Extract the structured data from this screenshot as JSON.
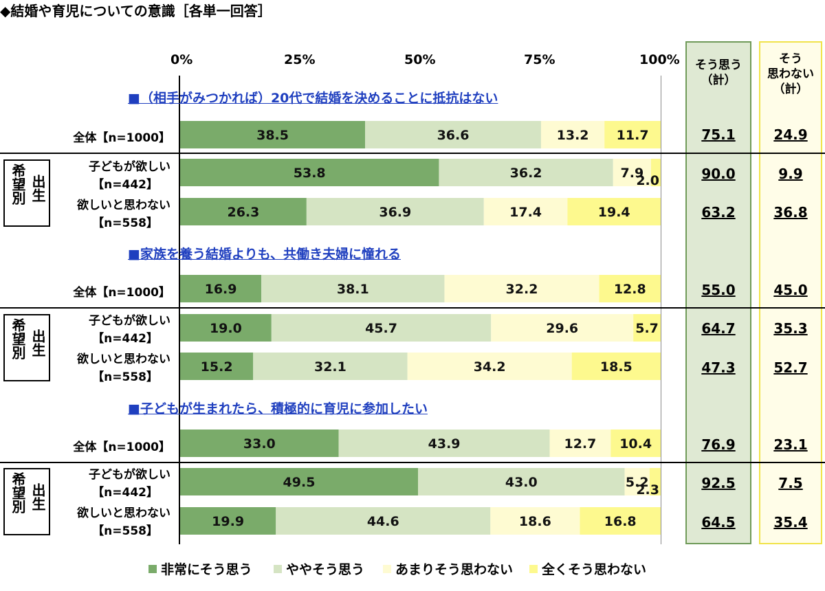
{
  "title": "◆結婚や育児についての意識［各単一回答］",
  "axis_ticks": [
    "0%",
    "25%",
    "50%",
    "75%",
    "100%"
  ],
  "columns": {
    "agree": [
      "そう思う",
      "（計）"
    ],
    "disagree": [
      "そう",
      "思わない",
      "（計）"
    ]
  },
  "group_label": {
    "left": "希望別",
    "right": "出生"
  },
  "colors": {
    "s1": "#7aab6a",
    "s2": "#d5e4c3",
    "s3": "#fefbd2",
    "s4": "#fdf98e",
    "agree_col_bg": "#dfe9d3",
    "agree_col_border": "#6f9a58",
    "disagree_col_bg": "#fffde8",
    "disagree_col_border": "#f0e34a",
    "question_text": "#1f3fbf"
  },
  "legend": [
    "非常にそう思う",
    "ややそう思う",
    "あまりそう思わない",
    "全くそう思わない"
  ],
  "questions": [
    {
      "title": "■（相手がみつかれば）20代で結婚を決めることに抵抗はない",
      "rows": [
        {
          "label_lines": [
            "全体【n=1000】"
          ],
          "values": [
            "38.5",
            "36.6",
            "13.2",
            "11.7"
          ],
          "agree": "75.1",
          "disagree": "24.9"
        },
        {
          "label_lines": [
            "子どもが欲しい",
            "【n=442】"
          ],
          "values": [
            "53.8",
            "36.2",
            "7.9",
            "2.0"
          ],
          "agree": "90.0",
          "disagree": "9.9"
        },
        {
          "label_lines": [
            "欲しいと思わない",
            "【n=558】"
          ],
          "values": [
            "26.3",
            "36.9",
            "17.4",
            "19.4"
          ],
          "agree": "63.2",
          "disagree": "36.8"
        }
      ]
    },
    {
      "title": "■家族を養う結婚よりも、共働き夫婦に憧れる",
      "rows": [
        {
          "label_lines": [
            "全体【n=1000】"
          ],
          "values": [
            "16.9",
            "38.1",
            "32.2",
            "12.8"
          ],
          "agree": "55.0",
          "disagree": "45.0"
        },
        {
          "label_lines": [
            "子どもが欲しい",
            "【n=442】"
          ],
          "values": [
            "19.0",
            "45.7",
            "29.6",
            "5.7"
          ],
          "agree": "64.7",
          "disagree": "35.3"
        },
        {
          "label_lines": [
            "欲しいと思わない",
            "【n=558】"
          ],
          "values": [
            "15.2",
            "32.1",
            "34.2",
            "18.5"
          ],
          "agree": "47.3",
          "disagree": "52.7"
        }
      ]
    },
    {
      "title": "■子どもが生まれたら、積極的に育児に参加したい",
      "rows": [
        {
          "label_lines": [
            "全体【n=1000】"
          ],
          "values": [
            "33.0",
            "43.9",
            "12.7",
            "10.4"
          ],
          "agree": "76.9",
          "disagree": "23.1"
        },
        {
          "label_lines": [
            "子どもが欲しい",
            "【n=442】"
          ],
          "values": [
            "49.5",
            "43.0",
            "5.2",
            "2.3"
          ],
          "agree": "92.5",
          "disagree": "7.5"
        },
        {
          "label_lines": [
            "欲しいと思わない",
            "【n=558】"
          ],
          "values": [
            "19.9",
            "44.6",
            "18.6",
            "16.8"
          ],
          "agree": "64.5",
          "disagree": "35.4"
        }
      ]
    }
  ],
  "chart_data": {
    "type": "bar",
    "stacked": true,
    "orientation": "horizontal",
    "title": "◆結婚や育児についての意識［各単一回答］",
    "xlim": [
      0,
      100
    ],
    "x_ticks": [
      "0%",
      "25%",
      "50%",
      "75%",
      "100%"
    ],
    "series_names": [
      "非常にそう思う",
      "ややそう思う",
      "あまりそう思わない",
      "全くそう思わない"
    ],
    "groups": [
      {
        "question": "■（相手がみつかれば）20代で結婚を決めることに抵抗はない",
        "categories": [
          "全体【n=1000】",
          "子どもが欲しい【n=442】",
          "欲しいと思わない【n=558】"
        ],
        "series": [
          {
            "name": "非常にそう思う",
            "values": [
              38.5,
              53.8,
              26.3
            ]
          },
          {
            "name": "ややそう思う",
            "values": [
              36.6,
              36.2,
              36.9
            ]
          },
          {
            "name": "あまりそう思わない",
            "values": [
              13.2,
              7.9,
              17.4
            ]
          },
          {
            "name": "全くそう思わない",
            "values": [
              11.7,
              2.0,
              19.4
            ]
          }
        ],
        "agree_total": [
          75.1,
          90.0,
          63.2
        ],
        "disagree_total": [
          24.9,
          9.9,
          36.8
        ]
      },
      {
        "question": "■家族を養う結婚よりも、共働き夫婦に憧れる",
        "categories": [
          "全体【n=1000】",
          "子どもが欲しい【n=442】",
          "欲しいと思わない【n=558】"
        ],
        "series": [
          {
            "name": "非常にそう思う",
            "values": [
              16.9,
              19.0,
              15.2
            ]
          },
          {
            "name": "ややそう思う",
            "values": [
              38.1,
              45.7,
              32.1
            ]
          },
          {
            "name": "あまりそう思わない",
            "values": [
              32.2,
              29.6,
              34.2
            ]
          },
          {
            "name": "全くそう思わない",
            "values": [
              12.8,
              5.7,
              18.5
            ]
          }
        ],
        "agree_total": [
          55.0,
          64.7,
          47.3
        ],
        "disagree_total": [
          45.0,
          35.3,
          52.7
        ]
      },
      {
        "question": "■子どもが生まれたら、積極的に育児に参加したい",
        "categories": [
          "全体【n=1000】",
          "子どもが欲しい【n=442】",
          "欲しいと思わない【n=558】"
        ],
        "series": [
          {
            "name": "非常にそう思う",
            "values": [
              33.0,
              49.5,
              19.9
            ]
          },
          {
            "name": "ややそう思う",
            "values": [
              43.9,
              43.0,
              44.6
            ]
          },
          {
            "name": "あまりそう思わない",
            "values": [
              12.7,
              5.2,
              18.6
            ]
          },
          {
            "name": "全くそう思わない",
            "values": [
              10.4,
              2.3,
              16.8
            ]
          }
        ],
        "agree_total": [
          76.9,
          92.5,
          64.5
        ],
        "disagree_total": [
          23.1,
          7.5,
          35.4
        ]
      }
    ],
    "grid": false,
    "legend_position": "bottom"
  }
}
